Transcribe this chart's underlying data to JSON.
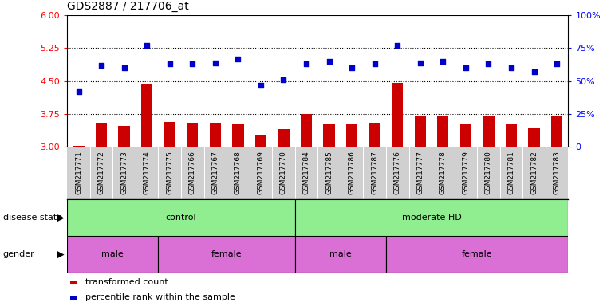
{
  "title": "GDS2887 / 217706_at",
  "samples": [
    "GSM217771",
    "GSM217772",
    "GSM217773",
    "GSM217774",
    "GSM217775",
    "GSM217766",
    "GSM217767",
    "GSM217768",
    "GSM217769",
    "GSM217770",
    "GSM217784",
    "GSM217785",
    "GSM217786",
    "GSM217787",
    "GSM217776",
    "GSM217777",
    "GSM217778",
    "GSM217779",
    "GSM217780",
    "GSM217781",
    "GSM217782",
    "GSM217783"
  ],
  "transformed_count": [
    3.02,
    3.55,
    3.48,
    4.45,
    3.57,
    3.55,
    3.55,
    3.52,
    3.28,
    3.4,
    3.75,
    3.52,
    3.52,
    3.55,
    4.46,
    3.72,
    3.72,
    3.52,
    3.72,
    3.52,
    3.42,
    3.72
  ],
  "percentile_rank": [
    42,
    62,
    60,
    77,
    63,
    63,
    64,
    67,
    47,
    51,
    63,
    65,
    60,
    63,
    77,
    64,
    65,
    60,
    63,
    60,
    57,
    63
  ],
  "ylim_left": [
    3.0,
    6.0
  ],
  "ylim_right": [
    0,
    100
  ],
  "yticks_left": [
    3.0,
    3.75,
    4.5,
    5.25,
    6.0
  ],
  "yticks_right": [
    0,
    25,
    50,
    75,
    100
  ],
  "hlines": [
    3.75,
    4.5,
    5.25
  ],
  "bar_color": "#cc0000",
  "dot_color": "#0000cc",
  "disease_divider": 10,
  "gender_groups": [
    [
      0,
      4,
      "male"
    ],
    [
      4,
      10,
      "female"
    ],
    [
      10,
      14,
      "male"
    ],
    [
      14,
      22,
      "female"
    ]
  ],
  "disease_state_color": "#90ee90",
  "gender_color_male": "#da70d6",
  "gender_color_female": "#cc66cc",
  "xtick_bg": "#d0d0d0",
  "background_color": "#ffffff",
  "annotation_row1_label": "disease state",
  "annotation_row2_label": "gender",
  "legend_items": [
    {
      "label": "transformed count",
      "color": "#cc0000"
    },
    {
      "label": "percentile rank within the sample",
      "color": "#0000cc"
    }
  ]
}
